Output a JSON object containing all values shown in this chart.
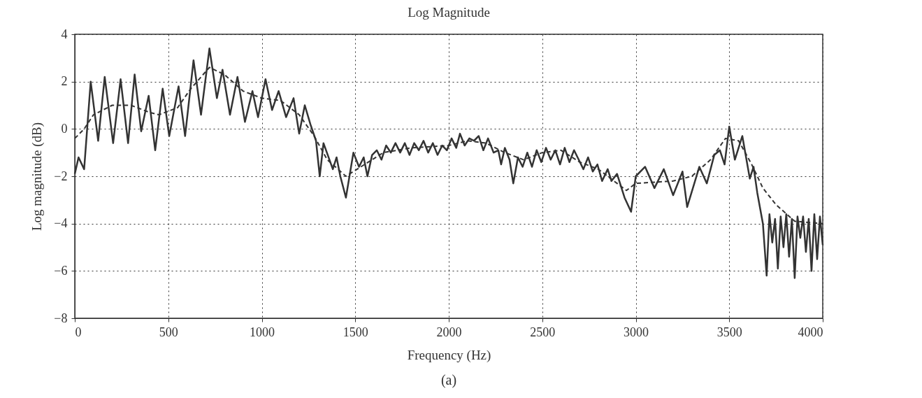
{
  "chart_data": {
    "type": "line",
    "title": "Log Magnitude",
    "xlabel": "Frequency (Hz)",
    "ylabel": "Log magnitude (dB)",
    "annotations": [
      "(a)"
    ],
    "xlim": [
      0,
      4000
    ],
    "ylim": [
      -8,
      4
    ],
    "xticks": [
      0,
      500,
      1000,
      1500,
      2000,
      2500,
      3000,
      3500,
      4000
    ],
    "yticks": [
      -8,
      -6,
      -4,
      -2,
      0,
      2,
      4
    ],
    "grid": true,
    "series": [
      {
        "color": "#333333",
        "line_style": "solid",
        "x": [
          0,
          20,
          50,
          85,
          125,
          160,
          205,
          245,
          285,
          320,
          355,
          395,
          430,
          470,
          505,
          555,
          590,
          635,
          675,
          720,
          760,
          790,
          830,
          870,
          910,
          950,
          980,
          1020,
          1055,
          1090,
          1130,
          1170,
          1200,
          1230,
          1260,
          1290,
          1310,
          1330,
          1380,
          1400,
          1420,
          1450,
          1490,
          1520,
          1545,
          1565,
          1590,
          1615,
          1640,
          1665,
          1690,
          1715,
          1740,
          1765,
          1790,
          1815,
          1840,
          1865,
          1890,
          1915,
          1940,
          1965,
          1990,
          2015,
          2040,
          2060,
          2085,
          2110,
          2135,
          2160,
          2185,
          2210,
          2240,
          2265,
          2280,
          2300,
          2325,
          2345,
          2370,
          2395,
          2420,
          2445,
          2470,
          2495,
          2520,
          2545,
          2570,
          2595,
          2620,
          2645,
          2670,
          2695,
          2720,
          2745,
          2770,
          2795,
          2820,
          2850,
          2870,
          2900,
          2940,
          2975,
          3000,
          3050,
          3100,
          3150,
          3200,
          3250,
          3275,
          3340,
          3380,
          3420,
          3450,
          3475,
          3500,
          3530,
          3570,
          3610,
          3630,
          3650,
          3680,
          3700,
          3715,
          3730,
          3745,
          3760,
          3775,
          3790,
          3805,
          3820,
          3835,
          3850,
          3865,
          3880,
          3895,
          3910,
          3925,
          3940,
          3955,
          3970,
          3985,
          4000
        ],
        "values": [
          -1.9,
          -1.2,
          -1.7,
          2.0,
          -0.5,
          2.2,
          -0.6,
          2.1,
          -0.6,
          2.3,
          -0.1,
          1.4,
          -0.9,
          1.7,
          -0.3,
          1.8,
          -0.3,
          2.9,
          0.6,
          3.4,
          1.3,
          2.5,
          0.6,
          2.2,
          0.3,
          1.6,
          0.5,
          2.1,
          0.8,
          1.6,
          0.5,
          1.3,
          -0.2,
          1.0,
          0.2,
          -0.5,
          -2.0,
          -0.6,
          -1.7,
          -1.2,
          -2.0,
          -2.9,
          -1.0,
          -1.6,
          -1.2,
          -2.0,
          -1.1,
          -0.9,
          -1.3,
          -0.7,
          -1.0,
          -0.6,
          -1.0,
          -0.6,
          -1.1,
          -0.6,
          -0.9,
          -0.5,
          -1.0,
          -0.6,
          -1.1,
          -0.7,
          -0.9,
          -0.4,
          -0.8,
          -0.2,
          -0.7,
          -0.4,
          -0.5,
          -0.3,
          -0.9,
          -0.4,
          -1.0,
          -0.9,
          -1.5,
          -0.8,
          -1.3,
          -2.3,
          -1.2,
          -1.6,
          -1.0,
          -1.6,
          -0.9,
          -1.4,
          -0.8,
          -1.3,
          -0.9,
          -1.5,
          -0.8,
          -1.4,
          -0.9,
          -1.3,
          -1.7,
          -1.2,
          -1.8,
          -1.5,
          -2.2,
          -1.7,
          -2.2,
          -1.9,
          -2.9,
          -3.5,
          -2.0,
          -1.6,
          -2.5,
          -1.7,
          -2.8,
          -1.8,
          -3.3,
          -1.6,
          -2.3,
          -1.1,
          -0.9,
          -1.5,
          0.1,
          -1.3,
          -0.3,
          -2.1,
          -1.6,
          -2.7,
          -4.0,
          -6.2,
          -3.6,
          -4.8,
          -3.8,
          -5.9,
          -3.7,
          -5.0,
          -3.6,
          -5.4,
          -3.8,
          -6.3,
          -3.7,
          -4.6,
          -3.7,
          -5.2,
          -3.8,
          -6.0,
          -3.6,
          -5.5,
          -3.7,
          -4.9
        ]
      },
      {
        "color": "#333333",
        "line_style": "dashed",
        "x": [
          0,
          50,
          100,
          200,
          300,
          400,
          450,
          550,
          620,
          720,
          800,
          900,
          1000,
          1100,
          1200,
          1280,
          1350,
          1450,
          1550,
          1650,
          1800,
          2000,
          2100,
          2200,
          2300,
          2400,
          2500,
          2600,
          2700,
          2800,
          2900,
          2950,
          3000,
          3200,
          3300,
          3400,
          3480,
          3550,
          3620,
          3680,
          3750,
          3850,
          4000
        ],
        "values": [
          -0.4,
          0,
          0.6,
          1.0,
          1.0,
          0.7,
          0.6,
          0.9,
          1.7,
          2.6,
          2.3,
          1.6,
          1.3,
          1.2,
          0.6,
          -0.3,
          -1.3,
          -2.0,
          -1.5,
          -1.0,
          -0.8,
          -0.7,
          -0.5,
          -0.6,
          -1.0,
          -1.3,
          -1.0,
          -0.9,
          -1.4,
          -1.7,
          -2.3,
          -2.6,
          -2.3,
          -2.2,
          -2.0,
          -1.3,
          -0.4,
          -0.5,
          -1.5,
          -2.5,
          -3.2,
          -3.9,
          -4.0
        ]
      }
    ]
  }
}
